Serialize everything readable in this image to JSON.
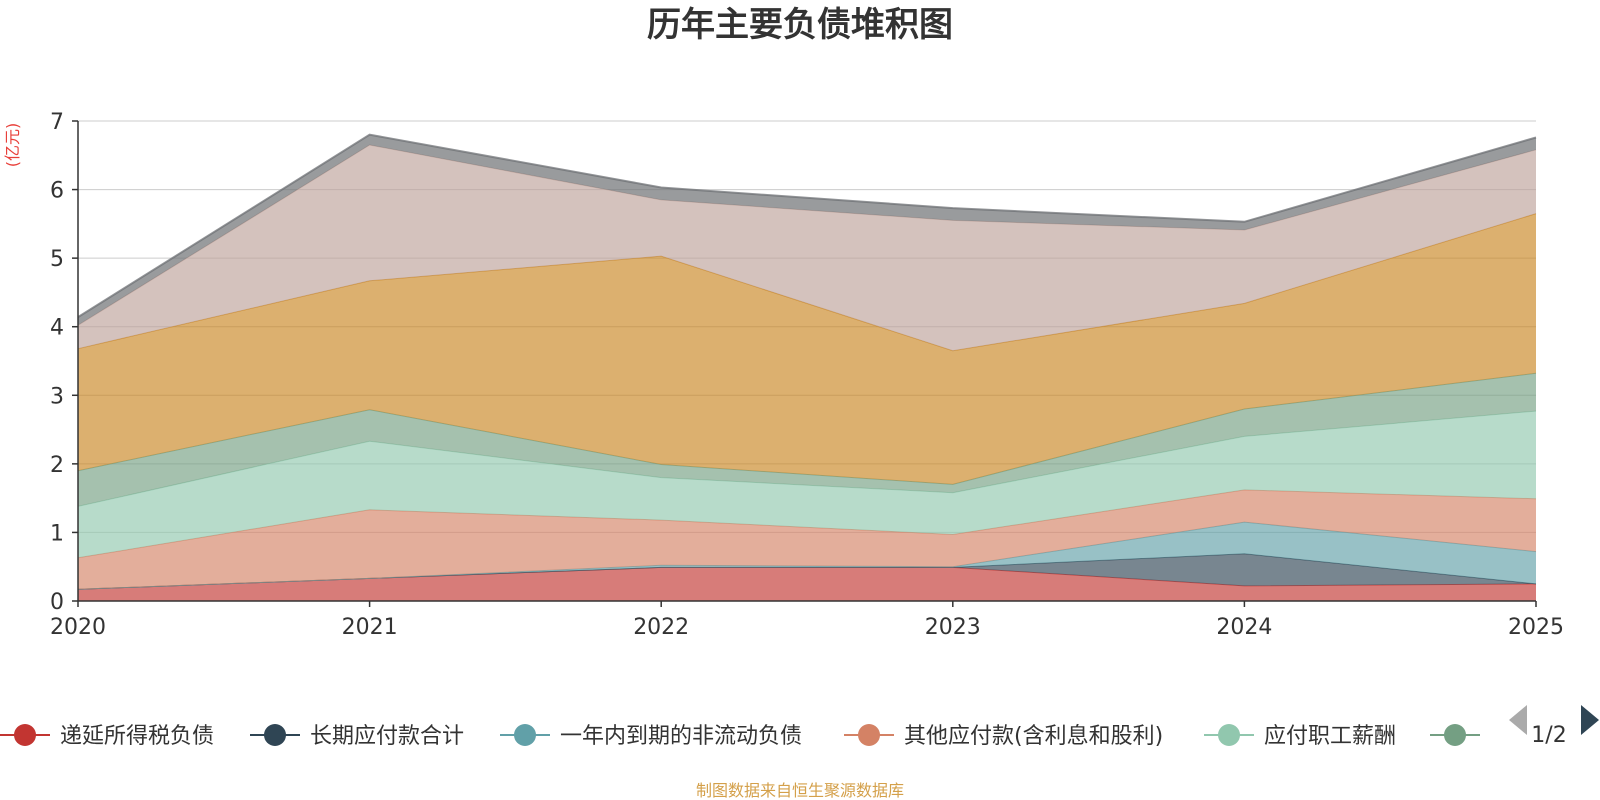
{
  "chart_data": {
    "type": "area",
    "stacked": true,
    "title": "历年主要负债堆积图",
    "unit_label": "(亿元)",
    "x": [
      "2020",
      "2021",
      "2022",
      "2023",
      "2024",
      "2025"
    ],
    "ylim": [
      0,
      7
    ],
    "yticks": [
      0,
      1,
      2,
      3,
      4,
      5,
      6,
      7
    ],
    "grid": true,
    "series": [
      {
        "name": "递延所得税负债",
        "color": "#c23531",
        "values": [
          0.17,
          0.33,
          0.49,
          0.49,
          0.22,
          0.25
        ],
        "in_legend": true
      },
      {
        "name": "长期应付款合计",
        "color": "#2f4554",
        "values": [
          0.0,
          0.0,
          0.0,
          0.0,
          0.47,
          0.0
        ],
        "in_legend": true
      },
      {
        "name": "一年内到期的非流动负债",
        "color": "#61a0a8",
        "values": [
          0.0,
          0.0,
          0.03,
          0.01,
          0.46,
          0.47
        ],
        "in_legend": true
      },
      {
        "name": "其他应付款(含利息和股利)",
        "color": "#d48265",
        "values": [
          0.46,
          1.0,
          0.66,
          0.47,
          0.47,
          0.77
        ],
        "in_legend": true
      },
      {
        "name": "应付职工薪酬",
        "color": "#91c7ae",
        "values": [
          0.75,
          1.0,
          0.62,
          0.61,
          0.78,
          1.28
        ],
        "in_legend": true
      },
      {
        "name": "",
        "color": "#749f83",
        "values": [
          0.52,
          0.46,
          0.19,
          0.12,
          0.4,
          0.55
        ],
        "in_legend": true
      },
      {
        "name": "",
        "color": "#ca8622",
        "values": [
          1.78,
          1.88,
          3.04,
          1.95,
          1.54,
          2.33
        ],
        "in_legend": false
      },
      {
        "name": "",
        "color": "#bda29a",
        "values": [
          0.34,
          1.98,
          0.82,
          1.9,
          1.07,
          0.93
        ],
        "in_legend": false
      },
      {
        "name": "",
        "color": "#6e7074",
        "values": [
          0.12,
          0.15,
          0.18,
          0.18,
          0.12,
          0.18
        ],
        "in_legend": false
      }
    ]
  },
  "legend": {
    "page_indicator": "1/2",
    "prev_label": "◀",
    "next_label": "▶"
  },
  "footer": {
    "source": "制图数据来自恒生聚源数据库"
  }
}
